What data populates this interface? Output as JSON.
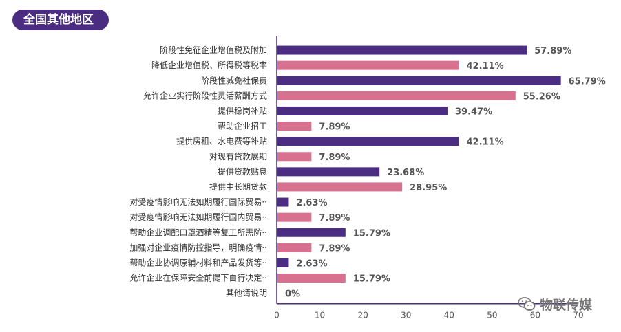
{
  "header": {
    "title": "全国其他地区"
  },
  "watermark": {
    "text": "物联传媒",
    "icon": "wechat-icon"
  },
  "colors": {
    "purple": "#4b2d82",
    "pink": "#d8708f",
    "title_bg": "#4a2c80"
  },
  "chart_data": {
    "type": "bar",
    "orientation": "horizontal",
    "title": "",
    "xlim": [
      0,
      70
    ],
    "xticks": [
      0,
      10,
      20,
      30,
      40,
      50,
      60,
      70
    ],
    "grid": false,
    "categories": [
      "阶段性免征企业增值税及附加",
      "降低企业增值税、所得税等税率",
      "阶段性减免社保费",
      "允许企业实行阶段性灵活薪酬方式",
      "提供稳岗补贴",
      "帮助企业招工",
      "提供房租、水电费等补贴",
      "对现有贷款展期",
      "提供贷款贴息",
      "提供中长期贷款",
      "对受疫情影响无法如期履行国际贸易··",
      "对受疫情影响无法如期履行国内贸易··",
      "帮助企业调配口罩酒精等复工所需防··",
      "加强对企业疫情防控指导，明确疫情··",
      "帮助企业协调原辅材料和产品发货等··",
      "允许企业在保障安全前提下自行决定··",
      "其他请说明"
    ],
    "values": [
      57.89,
      42.11,
      65.79,
      55.26,
      39.47,
      7.89,
      42.11,
      7.89,
      23.68,
      28.95,
      2.63,
      7.89,
      15.79,
      7.89,
      2.63,
      15.79,
      0
    ],
    "labels": [
      "57.89%",
      "42.11%",
      "65.79%",
      "55.26%",
      "39.47%",
      "7.89%",
      "42.11%",
      "7.89%",
      "23.68%",
      "28.95%",
      "2.63%",
      "7.89%",
      "15.79%",
      "7.89%",
      "2.63%",
      "15.79%",
      "0%"
    ],
    "bar_colors": [
      "purple",
      "pink",
      "purple",
      "pink",
      "purple",
      "pink",
      "purple",
      "pink",
      "purple",
      "pink",
      "purple",
      "pink",
      "purple",
      "pink",
      "purple",
      "pink",
      "purple"
    ]
  }
}
